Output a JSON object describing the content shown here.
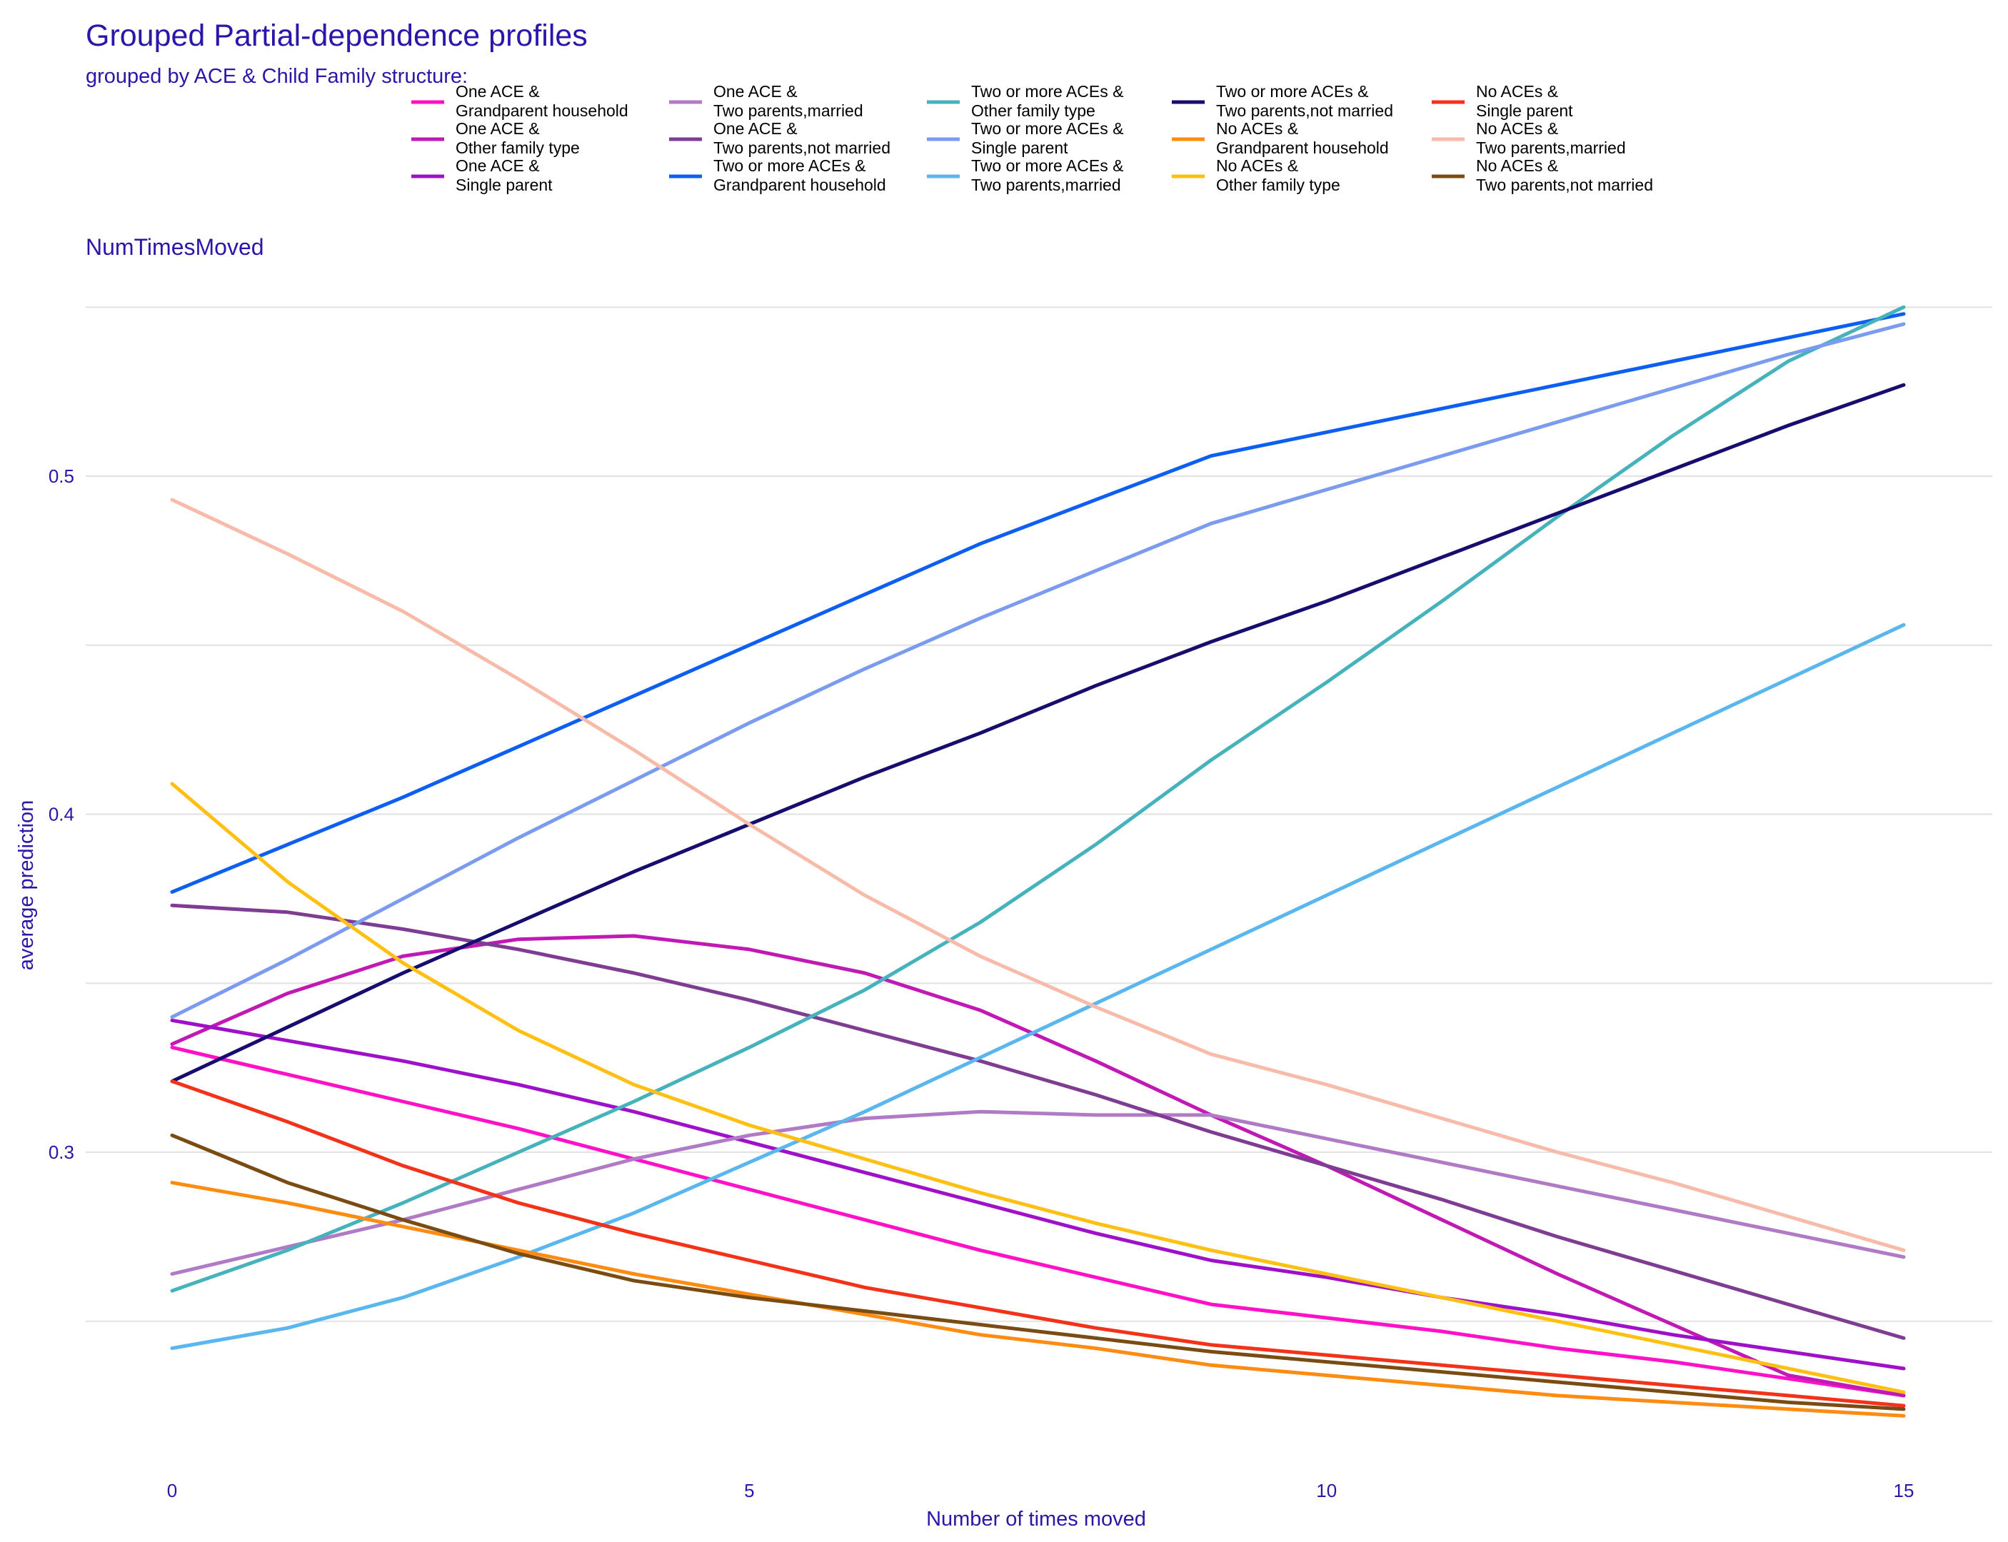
{
  "chart_data": {
    "type": "line",
    "title": "Grouped Partial-dependence profiles",
    "subtitle": "grouped by ACE  & Child Family structure:",
    "panel_label": "NumTimesMoved",
    "xlabel": "Number of times moved",
    "ylabel": "average prediction",
    "xlim": [
      0,
      15
    ],
    "ylim": [
      0.215,
      0.545
    ],
    "xticks": [
      0,
      5,
      10,
      15
    ],
    "yticks": [
      0.3,
      0.4,
      0.5
    ],
    "x": [
      0,
      1,
      2,
      3,
      4,
      5,
      6,
      7,
      8,
      9,
      10,
      11,
      12,
      13,
      14,
      15
    ],
    "grid": true,
    "legend_position": "top",
    "series": [
      {
        "name_line1": "One ACE &",
        "name_line2": "Grandparent household",
        "color": "#ff11c8",
        "values": [
          0.331,
          0.323,
          0.315,
          0.307,
          0.298,
          0.289,
          0.28,
          0.271,
          0.263,
          0.255,
          0.251,
          0.247,
          0.242,
          0.238,
          0.233,
          0.228
        ]
      },
      {
        "name_line1": "One ACE &",
        "name_line2": "Other family type",
        "color": "#c019b4",
        "values": [
          0.332,
          0.347,
          0.358,
          0.363,
          0.364,
          0.36,
          0.353,
          0.342,
          0.327,
          0.311,
          0.296,
          0.28,
          0.264,
          0.249,
          0.234,
          0.228
        ]
      },
      {
        "name_line1": "One ACE &",
        "name_line2": "Single parent",
        "color": "#9f11c8",
        "values": [
          0.339,
          0.333,
          0.327,
          0.32,
          0.312,
          0.303,
          0.294,
          0.285,
          0.276,
          0.268,
          0.263,
          0.257,
          0.252,
          0.246,
          0.241,
          0.236
        ]
      },
      {
        "name_line1": "One ACE &",
        "name_line2": "Two parents,married",
        "color": "#b07ac6",
        "values": [
          0.264,
          0.272,
          0.28,
          0.289,
          0.298,
          0.305,
          0.31,
          0.312,
          0.311,
          0.311,
          0.304,
          0.297,
          0.29,
          0.283,
          0.276,
          0.269
        ]
      },
      {
        "name_line1": "One ACE &",
        "name_line2": "Two parents,not married",
        "color": "#7e3d93",
        "values": [
          0.373,
          0.371,
          0.366,
          0.36,
          0.353,
          0.345,
          0.336,
          0.327,
          0.317,
          0.306,
          0.296,
          0.286,
          0.275,
          0.265,
          0.255,
          0.245
        ]
      },
      {
        "name_line1": "Two or more ACEs &",
        "name_line2": "Grandparent household",
        "color": "#0d5ef2",
        "values": [
          0.377,
          0.391,
          0.405,
          0.42,
          0.435,
          0.45,
          0.465,
          0.48,
          0.493,
          0.506,
          0.513,
          0.52,
          0.527,
          0.534,
          0.541,
          0.548
        ]
      },
      {
        "name_line1": "Two or more ACEs &",
        "name_line2": "Other family type",
        "color": "#45b2bc",
        "values": [
          0.259,
          0.271,
          0.285,
          0.3,
          0.315,
          0.331,
          0.348,
          0.368,
          0.391,
          0.416,
          0.439,
          0.463,
          0.488,
          0.512,
          0.534,
          0.55
        ]
      },
      {
        "name_line1": "Two or more ACEs &",
        "name_line2": "Single parent",
        "color": "#7a9bef",
        "values": [
          0.34,
          0.357,
          0.375,
          0.393,
          0.41,
          0.427,
          0.443,
          0.458,
          0.472,
          0.486,
          0.496,
          0.506,
          0.516,
          0.526,
          0.536,
          0.545
        ]
      },
      {
        "name_line1": "Two or more ACEs &",
        "name_line2": "Two parents,married",
        "color": "#5ab6ee",
        "values": [
          0.242,
          0.248,
          0.257,
          0.269,
          0.282,
          0.297,
          0.312,
          0.328,
          0.344,
          0.36,
          0.376,
          0.392,
          0.408,
          0.424,
          0.44,
          0.456
        ]
      },
      {
        "name_line1": "Two or more ACEs &",
        "name_line2": "Two parents,not married",
        "color": "#170d6f",
        "values": [
          0.321,
          0.337,
          0.353,
          0.368,
          0.383,
          0.397,
          0.411,
          0.424,
          0.438,
          0.451,
          0.463,
          0.476,
          0.489,
          0.502,
          0.515,
          0.527
        ]
      },
      {
        "name_line1": "No ACEs &",
        "name_line2": "Grandparent household",
        "color": "#ff8b11",
        "values": [
          0.291,
          0.285,
          0.278,
          0.271,
          0.264,
          0.258,
          0.252,
          0.246,
          0.242,
          0.237,
          0.234,
          0.231,
          0.228,
          0.226,
          0.224,
          0.222
        ]
      },
      {
        "name_line1": "No ACEs &",
        "name_line2": "Other family type",
        "color": "#ffc013",
        "values": [
          0.409,
          0.38,
          0.356,
          0.336,
          0.32,
          0.308,
          0.298,
          0.288,
          0.279,
          0.271,
          0.264,
          0.257,
          0.25,
          0.243,
          0.236,
          0.229
        ]
      },
      {
        "name_line1": "No ACEs &",
        "name_line2": "Single parent",
        "color": "#f3321a",
        "values": [
          0.321,
          0.309,
          0.296,
          0.285,
          0.276,
          0.268,
          0.26,
          0.254,
          0.248,
          0.243,
          0.24,
          0.237,
          0.234,
          0.231,
          0.228,
          0.225
        ]
      },
      {
        "name_line1": "No ACEs &",
        "name_line2": "Two parents,married",
        "color": "#f8bba9",
        "values": [
          0.493,
          0.477,
          0.46,
          0.44,
          0.419,
          0.397,
          0.376,
          0.358,
          0.343,
          0.329,
          0.32,
          0.31,
          0.3,
          0.291,
          0.281,
          0.271
        ]
      },
      {
        "name_line1": "No ACEs &",
        "name_line2": "Two parents,not married",
        "color": "#7a4b12",
        "values": [
          0.305,
          0.291,
          0.28,
          0.27,
          0.262,
          0.257,
          0.253,
          0.249,
          0.245,
          0.241,
          0.238,
          0.235,
          0.232,
          0.229,
          0.226,
          0.224
        ]
      }
    ]
  }
}
